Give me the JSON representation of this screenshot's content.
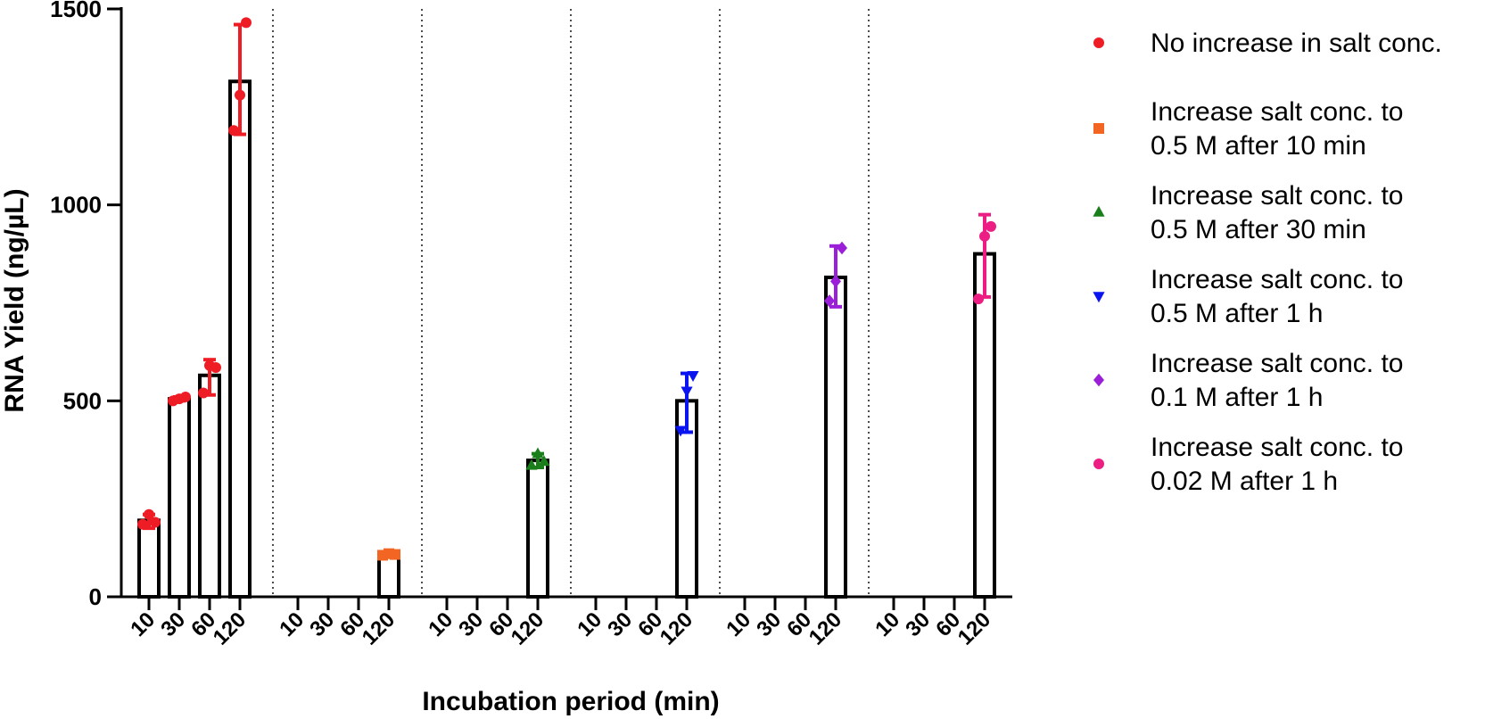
{
  "chart_data": {
    "type": "bar",
    "xlabel": "Incubation period (min)",
    "ylabel": "RNA Yield (ng/µL)",
    "ylim": [
      0,
      1500
    ],
    "yticks": [
      "0",
      "500",
      "1000",
      "1500"
    ],
    "categories": [
      "10",
      "30",
      "60",
      "120"
    ],
    "legend_position": "right",
    "series": [
      {
        "name": "No increase in salt conc.",
        "color": "#ee1c25",
        "marker": "circle",
        "values": [
          195,
          505,
          565,
          1315
        ],
        "error_low": [
          175,
          500,
          515,
          1180
        ],
        "error_high": [
          210,
          510,
          605,
          1460
        ],
        "points": [
          [
            185,
            210,
            190
          ],
          [
            500,
            505,
            510
          ],
          [
            520,
            590,
            585
          ],
          [
            1190,
            1280,
            1465
          ]
        ]
      },
      {
        "name": "Increase salt conc. to 0.5 M after 10 min",
        "color": "#f26522",
        "marker": "square",
        "values": [
          null,
          null,
          null,
          108
        ],
        "error_low": [
          null,
          null,
          null,
          104
        ],
        "error_high": [
          null,
          null,
          null,
          112
        ],
        "points": [
          [],
          [],
          [],
          [
            106,
            110,
            108
          ]
        ]
      },
      {
        "name": "Increase salt conc. to 0.5 M after 30 min",
        "color": "#1a7f1a",
        "marker": "triangle-up",
        "values": [
          null,
          null,
          null,
          348
        ],
        "error_low": [
          null,
          null,
          null,
          330
        ],
        "error_high": [
          null,
          null,
          null,
          365
        ],
        "points": [
          [],
          [],
          [],
          [
            335,
            365,
            345
          ]
        ]
      },
      {
        "name": "Increase salt conc. to 0.5 M after 1 h",
        "color": "#0a14f0",
        "marker": "triangle-down",
        "values": [
          null,
          null,
          null,
          500
        ],
        "error_low": [
          null,
          null,
          null,
          420
        ],
        "error_high": [
          null,
          null,
          null,
          570
        ],
        "points": [
          [],
          [],
          [],
          [
            425,
            525,
            565
          ]
        ]
      },
      {
        "name": "Increase salt conc. to 0.1 M after 1 h",
        "color": "#9b1fd9",
        "marker": "diamond",
        "values": [
          null,
          null,
          null,
          815
        ],
        "error_low": [
          null,
          null,
          null,
          740
        ],
        "error_high": [
          null,
          null,
          null,
          895
        ],
        "points": [
          [],
          [],
          [],
          [
            755,
            805,
            890
          ]
        ]
      },
      {
        "name": "Increase salt conc. to 0.02 M after 1 h",
        "color": "#ec1e83",
        "marker": "circle",
        "values": [
          null,
          null,
          null,
          875
        ],
        "error_low": [
          null,
          null,
          null,
          765
        ],
        "error_high": [
          null,
          null,
          null,
          975
        ],
        "points": [
          [],
          [],
          [],
          [
            760,
            920,
            945
          ]
        ]
      }
    ]
  },
  "legend": {
    "items": [
      {
        "lines": [
          "No increase in salt conc."
        ]
      },
      {
        "lines": [
          "Increase salt conc. to",
          "0.5 M after 10 min"
        ]
      },
      {
        "lines": [
          "Increase salt conc. to",
          "0.5 M after 30 min"
        ]
      },
      {
        "lines": [
          "Increase salt conc. to",
          "0.5 M after 1 h"
        ]
      },
      {
        "lines": [
          "Increase salt conc. to",
          "0.1 M after 1 h"
        ]
      },
      {
        "lines": [
          "Increase salt conc. to",
          "0.02 M after 1 h"
        ]
      }
    ]
  }
}
